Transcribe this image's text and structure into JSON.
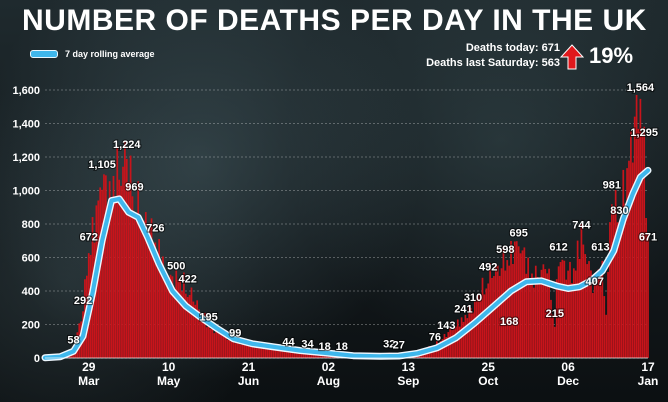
{
  "title": "NUMBER OF DEATHS PER DAY IN THE UK",
  "legend": {
    "rolling_average_label": "7 day rolling average"
  },
  "stats": {
    "today_label": "Deaths today:",
    "today_value": "671",
    "last_saturday_label": "Deaths last Saturday:",
    "last_saturday_value": "563",
    "change": "19%"
  },
  "colors": {
    "bars": "#c8141b",
    "line": "#3fb7ec",
    "line_outline": "#eef8ff",
    "arrow": "#e0181c"
  },
  "chart_data": {
    "type": "bar",
    "title": "NUMBER OF DEATHS PER DAY IN THE UK",
    "ylim": [
      0,
      1600
    ],
    "yticks": [
      0,
      200,
      400,
      600,
      800,
      1000,
      1200,
      1400,
      1600
    ],
    "ytick_labels": [
      "0",
      "200",
      "400",
      "600",
      "800",
      "1,000",
      "1,200",
      "1,400",
      "1,600"
    ],
    "xlim": [
      "2020-03-06",
      "2021-01-17"
    ],
    "xticks": [
      {
        "date": "2020-03-29",
        "day": "29",
        "month": "Mar"
      },
      {
        "date": "2020-05-10",
        "day": "10",
        "month": "May"
      },
      {
        "date": "2020-06-21",
        "day": "21",
        "month": "Jun"
      },
      {
        "date": "2020-08-02",
        "day": "02",
        "month": "Aug"
      },
      {
        "date": "2020-09-13",
        "day": "13",
        "month": "Sep"
      },
      {
        "date": "2020-10-25",
        "day": "25",
        "month": "Oct"
      },
      {
        "date": "2020-12-06",
        "day": "06",
        "month": "Dec"
      },
      {
        "date": "2021-01-17",
        "day": "17",
        "month": "Jan"
      }
    ],
    "daily_deaths_keypoints": [
      [
        "2020-03-06",
        1
      ],
      [
        "2020-03-14",
        10
      ],
      [
        "2020-03-21",
        58
      ],
      [
        "2020-03-26",
        292
      ],
      [
        "2020-03-29",
        672
      ],
      [
        "2020-04-01",
        800
      ],
      [
        "2020-04-05",
        1105
      ],
      [
        "2020-04-08",
        980
      ],
      [
        "2020-04-12",
        1100
      ],
      [
        "2020-04-18",
        1224
      ],
      [
        "2020-04-22",
        969
      ],
      [
        "2020-04-28",
        820
      ],
      [
        "2020-05-03",
        726
      ],
      [
        "2020-05-10",
        450
      ],
      [
        "2020-05-14",
        500
      ],
      [
        "2020-05-20",
        422
      ],
      [
        "2020-05-31",
        195
      ],
      [
        "2020-06-14",
        99
      ],
      [
        "2020-06-28",
        70
      ],
      [
        "2020-07-12",
        44
      ],
      [
        "2020-07-22",
        34
      ],
      [
        "2020-07-31",
        18
      ],
      [
        "2020-08-09",
        18
      ],
      [
        "2020-08-23",
        15
      ],
      [
        "2020-09-03",
        32
      ],
      [
        "2020-09-08",
        27
      ],
      [
        "2020-09-16",
        40
      ],
      [
        "2020-09-27",
        76
      ],
      [
        "2020-10-03",
        143
      ],
      [
        "2020-10-12",
        241
      ],
      [
        "2020-10-17",
        310
      ],
      [
        "2020-10-25",
        492
      ],
      [
        "2020-10-31",
        560
      ],
      [
        "2020-11-03",
        598
      ],
      [
        "2020-11-10",
        695
      ],
      [
        "2020-11-18",
        480
      ],
      [
        "2020-11-25",
        560
      ],
      [
        "2020-11-29",
        215
      ],
      [
        "2020-12-01",
        612
      ],
      [
        "2020-12-08",
        500
      ],
      [
        "2020-12-13",
        744
      ],
      [
        "2020-12-20",
        407
      ],
      [
        "2020-12-23",
        613
      ],
      [
        "2020-12-26",
        300
      ],
      [
        "2020-12-29",
        981
      ],
      [
        "2021-01-02",
        830
      ],
      [
        "2021-01-08",
        1300
      ],
      [
        "2021-01-13",
        1564
      ],
      [
        "2021-01-15",
        1295
      ],
      [
        "2021-01-17",
        671
      ]
    ],
    "rolling_average_keypoints": [
      [
        "2020-03-06",
        2
      ],
      [
        "2020-03-14",
        8
      ],
      [
        "2020-03-21",
        40
      ],
      [
        "2020-03-26",
        130
      ],
      [
        "2020-03-31",
        390
      ],
      [
        "2020-04-05",
        700
      ],
      [
        "2020-04-10",
        940
      ],
      [
        "2020-04-14",
        950
      ],
      [
        "2020-04-19",
        870
      ],
      [
        "2020-04-24",
        840
      ],
      [
        "2020-04-29",
        720
      ],
      [
        "2020-05-05",
        560
      ],
      [
        "2020-05-12",
        400
      ],
      [
        "2020-05-19",
        310
      ],
      [
        "2020-05-26",
        250
      ],
      [
        "2020-06-04",
        180
      ],
      [
        "2020-06-13",
        115
      ],
      [
        "2020-06-23",
        85
      ],
      [
        "2020-07-05",
        65
      ],
      [
        "2020-07-18",
        45
      ],
      [
        "2020-08-01",
        30
      ],
      [
        "2020-08-15",
        14
      ],
      [
        "2020-08-29",
        10
      ],
      [
        "2020-09-08",
        12
      ],
      [
        "2020-09-18",
        28
      ],
      [
        "2020-09-28",
        60
      ],
      [
        "2020-10-08",
        120
      ],
      [
        "2020-10-18",
        210
      ],
      [
        "2020-10-28",
        310
      ],
      [
        "2020-11-06",
        400
      ],
      [
        "2020-11-14",
        455
      ],
      [
        "2020-11-22",
        460
      ],
      [
        "2020-11-30",
        430
      ],
      [
        "2020-12-06",
        415
      ],
      [
        "2020-12-12",
        425
      ],
      [
        "2020-12-18",
        460
      ],
      [
        "2020-12-24",
        520
      ],
      [
        "2020-12-30",
        640
      ],
      [
        "2021-01-04",
        830
      ],
      [
        "2021-01-09",
        980
      ],
      [
        "2021-01-13",
        1080
      ],
      [
        "2021-01-17",
        1120
      ]
    ],
    "data_labels": [
      {
        "date": "2020-03-21",
        "value": 58,
        "label": "58"
      },
      {
        "date": "2020-03-26",
        "value": 292,
        "label": "292"
      },
      {
        "date": "2020-03-29",
        "value": 672,
        "label": "672"
      },
      {
        "date": "2020-04-05",
        "value": 1105,
        "label": "1,105"
      },
      {
        "date": "2020-04-18",
        "value": 1224,
        "label": "1,224"
      },
      {
        "date": "2020-04-22",
        "value": 969,
        "label": "969"
      },
      {
        "date": "2020-05-03",
        "value": 726,
        "label": "726"
      },
      {
        "date": "2020-05-14",
        "value": 500,
        "label": "500"
      },
      {
        "date": "2020-05-20",
        "value": 422,
        "label": "422"
      },
      {
        "date": "2020-05-31",
        "value": 195,
        "label": "195"
      },
      {
        "date": "2020-06-14",
        "value": 99,
        "label": "99"
      },
      {
        "date": "2020-07-12",
        "value": 44,
        "label": "44"
      },
      {
        "date": "2020-07-22",
        "value": 34,
        "label": "34"
      },
      {
        "date": "2020-07-31",
        "value": 18,
        "label": "18"
      },
      {
        "date": "2020-08-09",
        "value": 18,
        "label": "18"
      },
      {
        "date": "2020-09-03",
        "value": 32,
        "label": "32"
      },
      {
        "date": "2020-09-08",
        "value": 27,
        "label": "27"
      },
      {
        "date": "2020-09-27",
        "value": 76,
        "label": "76"
      },
      {
        "date": "2020-10-03",
        "value": 143,
        "label": "143"
      },
      {
        "date": "2020-10-12",
        "value": 241,
        "label": "241"
      },
      {
        "date": "2020-10-17",
        "value": 310,
        "label": "310"
      },
      {
        "date": "2020-10-25",
        "value": 492,
        "label": "492"
      },
      {
        "date": "2020-11-03",
        "value": 598,
        "label": "598"
      },
      {
        "date": "2020-11-05",
        "value": 168,
        "label": "168"
      },
      {
        "date": "2020-11-10",
        "value": 695,
        "label": "695"
      },
      {
        "date": "2020-11-29",
        "value": 215,
        "label": "215"
      },
      {
        "date": "2020-12-01",
        "value": 612,
        "label": "612"
      },
      {
        "date": "2020-12-13",
        "value": 744,
        "label": "744"
      },
      {
        "date": "2020-12-20",
        "value": 407,
        "label": "407"
      },
      {
        "date": "2020-12-23",
        "value": 613,
        "label": "613"
      },
      {
        "date": "2020-12-29",
        "value": 981,
        "label": "981"
      },
      {
        "date": "2021-01-02",
        "value": 830,
        "label": "830"
      },
      {
        "date": "2021-01-13",
        "value": 1564,
        "label": "1,564"
      },
      {
        "date": "2021-01-15",
        "value": 1295,
        "label": "1,295"
      },
      {
        "date": "2021-01-17",
        "value": 671,
        "label": "671"
      }
    ],
    "grid": true,
    "legend_position": "top-left"
  }
}
